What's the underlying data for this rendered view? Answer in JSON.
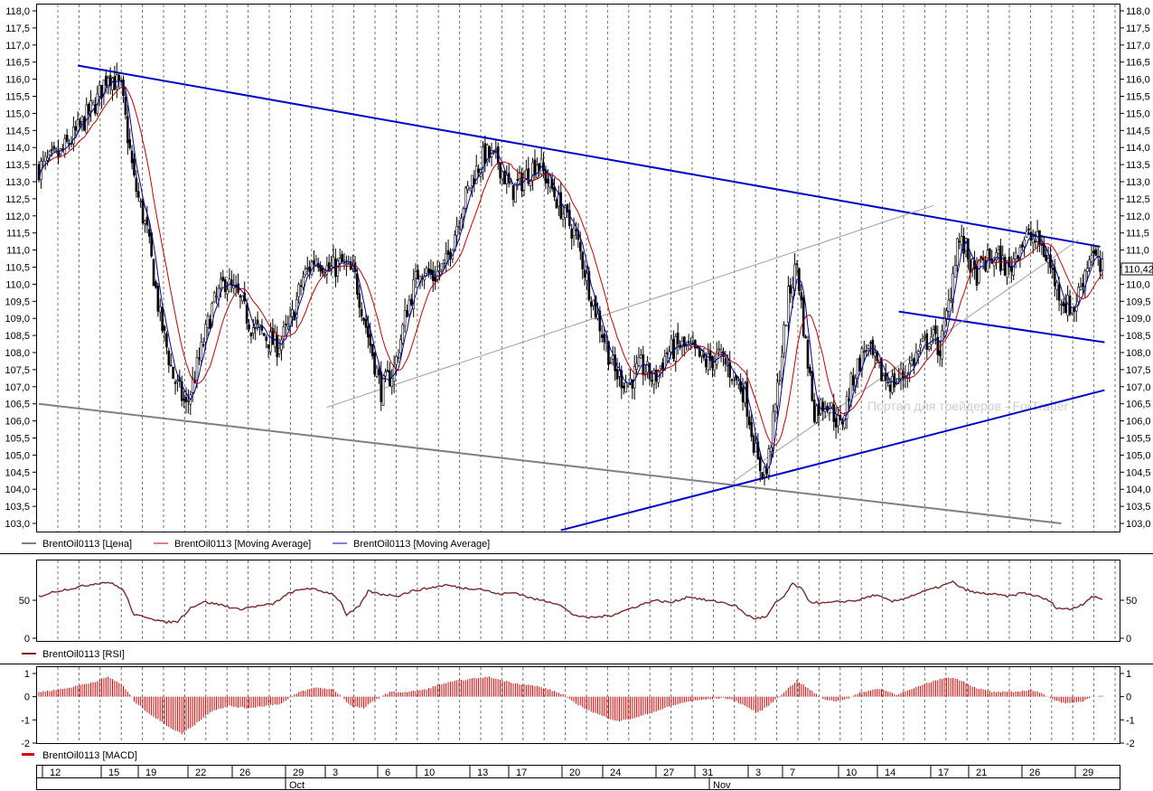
{
  "chart_data": [
    {
      "type": "candlestick",
      "panel": "price",
      "ylim": [
        102.8,
        118.2
      ],
      "y_ticks": [
        "103,0",
        "103,5",
        "104,0",
        "104,5",
        "105,0",
        "105,5",
        "106,0",
        "106,5",
        "107,0",
        "107,5",
        "108,0",
        "108,5",
        "109,0",
        "109,5",
        "110,0",
        "110,5",
        "111,0",
        "111,5",
        "112,0",
        "112,5",
        "113,0",
        "113,5",
        "114,0",
        "114,5",
        "115,0",
        "115,5",
        "116,0",
        "116,5",
        "117,0",
        "117,5",
        "118,0"
      ],
      "last_price_label": "110,42",
      "watermark": "Портал для трейдеров - ForTrader",
      "legend": [
        "BrentOil0113 [Цена]",
        "BrentOil0113 [Moving Average]",
        "BrentOil0113 [Moving Average]"
      ],
      "colors": {
        "price": "#000000",
        "ma_slow": "#cc0000",
        "ma_fast": "#0000aa",
        "trend": "#0000cc",
        "channel": "#808080",
        "thin": "#a0a0a0"
      },
      "anchors": [
        [
          0,
          113.4
        ],
        [
          10,
          113.8
        ],
        [
          18,
          114.5
        ],
        [
          27,
          115.4
        ],
        [
          32,
          116.2
        ],
        [
          38,
          115.7
        ],
        [
          44,
          113.0
        ],
        [
          50,
          111.5
        ],
        [
          56,
          109.0
        ],
        [
          62,
          107.3
        ],
        [
          68,
          106.4
        ],
        [
          74,
          107.8
        ],
        [
          80,
          109.3
        ],
        [
          86,
          110.1
        ],
        [
          92,
          109.6
        ],
        [
          98,
          108.8
        ],
        [
          104,
          108.5
        ],
        [
          110,
          108.2
        ],
        [
          116,
          108.8
        ],
        [
          122,
          110.2
        ],
        [
          128,
          110.8
        ],
        [
          134,
          110.4
        ],
        [
          140,
          110.6
        ],
        [
          146,
          110.2
        ],
        [
          152,
          108.5
        ],
        [
          158,
          106.9
        ],
        [
          164,
          107.5
        ],
        [
          170,
          109.3
        ],
        [
          176,
          110.5
        ],
        [
          182,
          110.2
        ],
        [
          188,
          110.6
        ],
        [
          194,
          112.0
        ],
        [
          200,
          113.1
        ],
        [
          206,
          113.8
        ],
        [
          212,
          113.6
        ],
        [
          218,
          112.7
        ],
        [
          224,
          113.1
        ],
        [
          230,
          113.6
        ],
        [
          236,
          112.9
        ],
        [
          242,
          112.1
        ],
        [
          248,
          111.4
        ],
        [
          254,
          109.9
        ],
        [
          260,
          108.6
        ],
        [
          266,
          107.4
        ],
        [
          272,
          107.1
        ],
        [
          278,
          107.6
        ],
        [
          284,
          107.2
        ],
        [
          290,
          108.0
        ],
        [
          296,
          108.2
        ],
        [
          302,
          108.0
        ],
        [
          308,
          107.7
        ],
        [
          314,
          107.9
        ],
        [
          320,
          107.4
        ],
        [
          326,
          106.8
        ],
        [
          332,
          104.7
        ],
        [
          336,
          104.5
        ],
        [
          340,
          106.4
        ],
        [
          346,
          109.6
        ],
        [
          350,
          110.6
        ],
        [
          354,
          108.2
        ],
        [
          358,
          106.3
        ],
        [
          364,
          106.6
        ],
        [
          370,
          105.8
        ],
        [
          376,
          107.3
        ],
        [
          382,
          108.2
        ],
        [
          388,
          107.4
        ],
        [
          394,
          107.1
        ],
        [
          400,
          107.4
        ],
        [
          406,
          108.0
        ],
        [
          412,
          108.5
        ],
        [
          416,
          108.1
        ],
        [
          420,
          109.4
        ],
        [
          424,
          111.3
        ],
        [
          428,
          111.0
        ],
        [
          432,
          110.2
        ],
        [
          436,
          110.6
        ],
        [
          442,
          110.8
        ],
        [
          448,
          110.4
        ],
        [
          452,
          111.1
        ],
        [
          456,
          111.4
        ],
        [
          462,
          111.2
        ],
        [
          466,
          110.7
        ],
        [
          470,
          109.9
        ],
        [
          474,
          109.4
        ],
        [
          478,
          109.3
        ],
        [
          482,
          110.2
        ],
        [
          486,
          111.0
        ],
        [
          490,
          110.4
        ]
      ],
      "lines": [
        {
          "name": "upper-resistance",
          "p1": [
            18,
            116.4
          ],
          "p2": [
            490,
            111.1
          ]
        },
        {
          "name": "channel-lower",
          "p1": [
            0,
            106.5
          ],
          "p2": [
            472,
            103.0
          ]
        },
        {
          "name": "lower-support",
          "p1": [
            241,
            102.8
          ],
          "p2": [
            492,
            106.9
          ]
        },
        {
          "name": "mini-channel-lower",
          "p1": [
            397,
            109.2
          ],
          "p2": [
            492,
            108.3
          ]
        },
        {
          "name": "thin-wedge-upper",
          "p1": [
            133,
            106.4
          ],
          "p2": [
            413,
            112.3
          ]
        },
        {
          "name": "thin-wedge-lower",
          "p1": [
            320,
            104.2
          ],
          "p2": [
            480,
            111.3
          ]
        }
      ]
    },
    {
      "type": "line",
      "panel": "rsi",
      "ylim": [
        0,
        100
      ],
      "y_ticks": [
        "0",
        "50"
      ],
      "legend": "BrentOil0113 [RSI]",
      "color": "#7a2a2a",
      "anchors": [
        [
          0,
          55
        ],
        [
          8,
          62
        ],
        [
          16,
          66
        ],
        [
          26,
          72
        ],
        [
          32,
          74
        ],
        [
          38,
          66
        ],
        [
          40,
          58
        ],
        [
          44,
          30
        ],
        [
          50,
          28
        ],
        [
          58,
          21
        ],
        [
          64,
          22
        ],
        [
          70,
          40
        ],
        [
          76,
          48
        ],
        [
          84,
          44
        ],
        [
          92,
          38
        ],
        [
          100,
          42
        ],
        [
          108,
          45
        ],
        [
          116,
          60
        ],
        [
          124,
          66
        ],
        [
          132,
          61
        ],
        [
          136,
          58
        ],
        [
          140,
          45
        ],
        [
          142,
          30
        ],
        [
          148,
          42
        ],
        [
          152,
          62
        ],
        [
          158,
          58
        ],
        [
          166,
          56
        ],
        [
          172,
          62
        ],
        [
          180,
          66
        ],
        [
          188,
          70
        ],
        [
          196,
          66
        ],
        [
          204,
          65
        ],
        [
          212,
          58
        ],
        [
          220,
          60
        ],
        [
          228,
          52
        ],
        [
          236,
          48
        ],
        [
          240,
          45
        ],
        [
          246,
          32
        ],
        [
          252,
          27
        ],
        [
          258,
          28
        ],
        [
          264,
          30
        ],
        [
          270,
          36
        ],
        [
          278,
          44
        ],
        [
          284,
          50
        ],
        [
          292,
          47
        ],
        [
          300,
          55
        ],
        [
          308,
          50
        ],
        [
          316,
          47
        ],
        [
          322,
          42
        ],
        [
          326,
          32
        ],
        [
          330,
          26
        ],
        [
          336,
          28
        ],
        [
          340,
          46
        ],
        [
          344,
          55
        ],
        [
          348,
          72
        ],
        [
          352,
          65
        ],
        [
          356,
          48
        ],
        [
          362,
          46
        ],
        [
          370,
          48
        ],
        [
          378,
          50
        ],
        [
          386,
          57
        ],
        [
          394,
          48
        ],
        [
          400,
          53
        ],
        [
          408,
          61
        ],
        [
          416,
          68
        ],
        [
          422,
          74
        ],
        [
          426,
          66
        ],
        [
          432,
          60
        ],
        [
          440,
          58
        ],
        [
          448,
          55
        ],
        [
          454,
          60
        ],
        [
          460,
          56
        ],
        [
          466,
          50
        ],
        [
          470,
          40
        ],
        [
          476,
          38
        ],
        [
          482,
          45
        ],
        [
          486,
          55
        ],
        [
          490,
          52
        ]
      ]
    },
    {
      "type": "bar",
      "panel": "macd",
      "ylim": [
        -2,
        1.2
      ],
      "y_ticks": [
        "-2",
        "-1",
        "0",
        "1"
      ],
      "legend": "BrentOil0113 [MACD]",
      "color": "#dd0000",
      "anchors": [
        [
          0,
          0.2
        ],
        [
          12,
          0.35
        ],
        [
          24,
          0.6
        ],
        [
          32,
          0.85
        ],
        [
          38,
          0.55
        ],
        [
          42,
          0.1
        ],
        [
          44,
          -0.2
        ],
        [
          52,
          -0.8
        ],
        [
          60,
          -1.3
        ],
        [
          66,
          -1.6
        ],
        [
          72,
          -1.2
        ],
        [
          80,
          -0.6
        ],
        [
          88,
          -0.4
        ],
        [
          96,
          -0.5
        ],
        [
          104,
          -0.4
        ],
        [
          112,
          -0.3
        ],
        [
          120,
          0.2
        ],
        [
          128,
          0.4
        ],
        [
          136,
          0.3
        ],
        [
          140,
          0.0
        ],
        [
          144,
          -0.4
        ],
        [
          150,
          -0.5
        ],
        [
          156,
          -0.1
        ],
        [
          162,
          0.2
        ],
        [
          170,
          0.2
        ],
        [
          178,
          0.3
        ],
        [
          186,
          0.55
        ],
        [
          194,
          0.7
        ],
        [
          202,
          0.8
        ],
        [
          208,
          0.85
        ],
        [
          214,
          0.7
        ],
        [
          222,
          0.55
        ],
        [
          230,
          0.45
        ],
        [
          236,
          0.3
        ],
        [
          242,
          0.1
        ],
        [
          246,
          -0.2
        ],
        [
          254,
          -0.6
        ],
        [
          262,
          -0.9
        ],
        [
          268,
          -1.05
        ],
        [
          276,
          -0.9
        ],
        [
          284,
          -0.65
        ],
        [
          292,
          -0.4
        ],
        [
          300,
          -0.2
        ],
        [
          310,
          -0.1
        ],
        [
          316,
          -0.05
        ],
        [
          322,
          -0.2
        ],
        [
          328,
          -0.5
        ],
        [
          332,
          -0.7
        ],
        [
          338,
          -0.3
        ],
        [
          344,
          0.2
        ],
        [
          350,
          0.7
        ],
        [
          356,
          0.3
        ],
        [
          362,
          -0.1
        ],
        [
          368,
          -0.2
        ],
        [
          374,
          -0.05
        ],
        [
          380,
          0.2
        ],
        [
          388,
          0.35
        ],
        [
          396,
          0.1
        ],
        [
          404,
          0.35
        ],
        [
          412,
          0.65
        ],
        [
          420,
          0.85
        ],
        [
          426,
          0.7
        ],
        [
          432,
          0.4
        ],
        [
          440,
          0.2
        ],
        [
          450,
          0.2
        ],
        [
          458,
          0.3
        ],
        [
          464,
          0.1
        ],
        [
          470,
          -0.2
        ],
        [
          476,
          -0.3
        ],
        [
          482,
          -0.2
        ],
        [
          486,
          0.0
        ],
        [
          490,
          0.05
        ]
      ]
    }
  ],
  "x_axis": {
    "day_labels": [
      "12",
      "15",
      "19",
      "22",
      "26",
      "29",
      "3",
      "6",
      "10",
      "13",
      "17",
      "20",
      "24",
      "27",
      "31",
      "3",
      "7",
      "10",
      "14",
      "17",
      "21",
      "26",
      "29"
    ],
    "month_labels": [
      "Oct",
      "Nov"
    ]
  }
}
